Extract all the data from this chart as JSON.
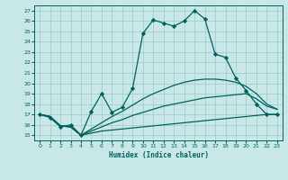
{
  "title": "",
  "xlabel": "Humidex (Indice chaleur)",
  "bg_color": "#c8e8e8",
  "grid_color": "#a0c8c8",
  "line_color": "#006060",
  "xlim": [
    -0.5,
    23.5
  ],
  "ylim": [
    14.5,
    27.5
  ],
  "xticks": [
    0,
    1,
    2,
    3,
    4,
    5,
    6,
    7,
    8,
    9,
    10,
    11,
    12,
    13,
    14,
    15,
    16,
    17,
    18,
    19,
    20,
    21,
    22,
    23
  ],
  "yticks": [
    15,
    16,
    17,
    18,
    19,
    20,
    21,
    22,
    23,
    24,
    25,
    26,
    27
  ],
  "line1_x": [
    0,
    1,
    2,
    3,
    4,
    5,
    6,
    7,
    8,
    9,
    10,
    11,
    12,
    13,
    14,
    15,
    16,
    17,
    18,
    19,
    20,
    21,
    22,
    23
  ],
  "line1_y": [
    17.0,
    16.7,
    15.8,
    16.0,
    15.0,
    17.3,
    19.0,
    17.2,
    17.7,
    19.5,
    24.8,
    26.1,
    25.8,
    25.5,
    26.0,
    27.0,
    26.2,
    22.8,
    22.5,
    20.5,
    19.3,
    18.0,
    17.0,
    17.0
  ],
  "line2_x": [
    0,
    1,
    2,
    3,
    4,
    5,
    6,
    7,
    8,
    9,
    10,
    11,
    12,
    13,
    14,
    15,
    16,
    17,
    18,
    19,
    20,
    21,
    22,
    23
  ],
  "line2_y": [
    17.0,
    16.8,
    15.9,
    15.8,
    15.0,
    15.2,
    15.4,
    15.5,
    15.6,
    15.7,
    15.8,
    15.9,
    16.0,
    16.1,
    16.2,
    16.3,
    16.4,
    16.5,
    16.6,
    16.7,
    16.8,
    16.9,
    17.0,
    17.0
  ],
  "line3_x": [
    0,
    1,
    2,
    3,
    4,
    5,
    6,
    7,
    8,
    9,
    10,
    11,
    12,
    13,
    14,
    15,
    16,
    17,
    18,
    19,
    20,
    21,
    22,
    23
  ],
  "line3_y": [
    17.0,
    16.8,
    15.9,
    15.8,
    15.0,
    15.4,
    15.8,
    16.2,
    16.5,
    16.9,
    17.2,
    17.5,
    17.8,
    18.0,
    18.2,
    18.4,
    18.6,
    18.7,
    18.8,
    18.9,
    19.0,
    18.5,
    17.8,
    17.5
  ],
  "line4_x": [
    0,
    1,
    2,
    3,
    4,
    5,
    6,
    7,
    8,
    9,
    10,
    11,
    12,
    13,
    14,
    15,
    16,
    17,
    18,
    19,
    20,
    21,
    22,
    23
  ],
  "line4_y": [
    17.0,
    16.8,
    15.9,
    15.8,
    15.0,
    15.6,
    16.2,
    16.8,
    17.3,
    17.9,
    18.5,
    19.0,
    19.4,
    19.8,
    20.1,
    20.3,
    20.4,
    20.4,
    20.3,
    20.1,
    19.7,
    19.0,
    18.0,
    17.5
  ]
}
